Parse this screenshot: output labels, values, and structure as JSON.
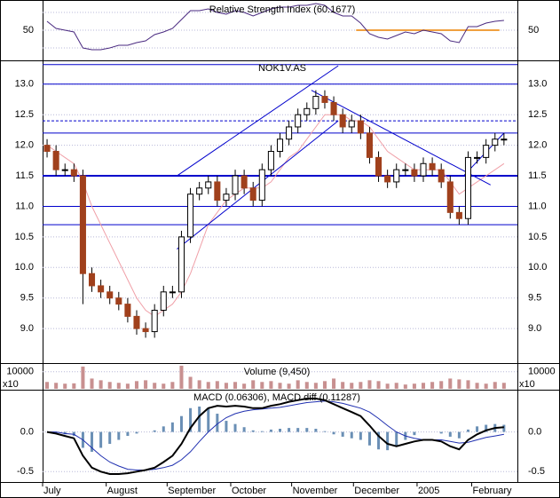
{
  "chart_data": [
    {
      "type": "line",
      "title": "Relative Strength Index (60.1677)",
      "color": "#4a2a80",
      "xlim": [
        0,
        53
      ],
      "values": [
        60,
        52,
        50,
        48,
        30,
        28,
        28,
        30,
        33,
        33,
        36,
        38,
        45,
        48,
        52,
        62,
        72,
        72,
        74,
        70,
        68,
        72,
        70,
        66,
        70,
        74,
        76,
        76,
        78,
        78,
        80,
        78,
        70,
        66,
        66,
        58,
        46,
        42,
        40,
        44,
        48,
        46,
        50,
        48,
        46,
        38,
        36,
        54,
        54,
        58,
        60,
        61
      ],
      "ylim": [
        18,
        82
      ],
      "yticks": [
        50
      ],
      "ref_lines": [
        30,
        70
      ],
      "highlight": {
        "value": 50,
        "from": 35,
        "to": 51,
        "color": "#f0a040"
      }
    },
    {
      "type": "candlestick",
      "title": "NOK1V.AS",
      "up_color": "#ffffff",
      "down_color": "#a0401c",
      "xlim": [
        0,
        53
      ],
      "open": [
        12.0,
        11.9,
        11.6,
        11.6,
        11.5,
        9.9,
        9.7,
        9.6,
        9.5,
        9.4,
        9.2,
        9.0,
        8.95,
        9.3,
        9.6,
        9.6,
        10.5,
        11.2,
        11.3,
        11.4,
        11.1,
        11.2,
        11.5,
        11.3,
        11.1,
        11.6,
        11.9,
        12.1,
        12.3,
        12.5,
        12.6,
        12.8,
        12.7,
        12.5,
        12.3,
        12.4,
        12.2,
        11.8,
        11.5,
        11.4,
        11.6,
        11.6,
        11.5,
        11.7,
        11.6,
        11.4,
        10.9,
        10.8,
        11.8,
        11.8,
        12.0,
        12.1
      ],
      "high": [
        12.1,
        12.0,
        11.7,
        11.7,
        11.6,
        10.0,
        9.8,
        9.7,
        9.6,
        9.5,
        9.3,
        9.1,
        9.4,
        9.7,
        9.7,
        10.6,
        11.3,
        11.4,
        11.5,
        11.5,
        11.3,
        11.6,
        11.6,
        11.4,
        11.7,
        12.0,
        12.2,
        12.4,
        12.6,
        12.7,
        12.9,
        12.9,
        12.8,
        12.6,
        12.5,
        12.5,
        12.3,
        11.9,
        11.6,
        11.7,
        11.7,
        11.7,
        11.8,
        11.8,
        11.7,
        11.5,
        11.0,
        11.9,
        11.9,
        12.1,
        12.2,
        12.2
      ],
      "low": [
        11.8,
        11.5,
        11.5,
        11.4,
        9.4,
        9.6,
        9.5,
        9.4,
        9.3,
        9.1,
        8.9,
        8.85,
        8.85,
        9.2,
        9.5,
        9.5,
        10.4,
        11.1,
        11.2,
        11.0,
        11.0,
        11.1,
        11.2,
        11.0,
        11.0,
        11.5,
        11.8,
        12.0,
        12.2,
        12.4,
        12.5,
        12.6,
        12.4,
        12.2,
        12.2,
        12.1,
        11.7,
        11.4,
        11.3,
        11.3,
        11.5,
        11.4,
        11.4,
        11.5,
        11.3,
        10.8,
        10.7,
        10.7,
        11.7,
        11.7,
        11.9,
        12.0
      ],
      "close": [
        11.9,
        11.6,
        11.6,
        11.5,
        9.9,
        9.7,
        9.6,
        9.5,
        9.4,
        9.2,
        9.0,
        8.95,
        9.3,
        9.6,
        9.6,
        10.5,
        11.2,
        11.3,
        11.4,
        11.1,
        11.2,
        11.5,
        11.3,
        11.1,
        11.6,
        11.9,
        12.1,
        12.3,
        12.5,
        12.6,
        12.8,
        12.7,
        12.5,
        12.3,
        12.4,
        12.2,
        11.8,
        11.5,
        11.4,
        11.6,
        11.6,
        11.5,
        11.7,
        11.6,
        11.4,
        10.9,
        10.8,
        11.8,
        11.8,
        12.0,
        12.1,
        12.1
      ],
      "ma": {
        "color": "#f0a0a8",
        "values": [
          12.0,
          11.9,
          11.8,
          11.7,
          11.4,
          11.0,
          10.7,
          10.4,
          10.1,
          9.8,
          9.5,
          9.3,
          9.2,
          9.3,
          9.4,
          9.6,
          9.9,
          10.3,
          10.7,
          10.9,
          11.1,
          11.2,
          11.3,
          11.3,
          11.3,
          11.4,
          11.6,
          11.8,
          11.9,
          12.1,
          12.3,
          12.5,
          12.5,
          12.5,
          12.4,
          12.4,
          12.3,
          12.1,
          11.9,
          11.8,
          11.7,
          11.6,
          11.6,
          11.6,
          11.6,
          11.4,
          11.2,
          11.3,
          11.4,
          11.5,
          11.6,
          11.7
        ]
      },
      "ylim": [
        8.45,
        13.36
      ],
      "yticks": [
        {
          "value": 9.0,
          "label": "9.0"
        },
        {
          "value": 9.5,
          "label": "9.5"
        },
        {
          "value": 10.0,
          "label": "10.0"
        },
        {
          "value": 10.5,
          "label": "10.5"
        },
        {
          "value": 11.0,
          "label": "11.0"
        },
        {
          "value": 11.5,
          "label": "11.5"
        },
        {
          "value": 12.0,
          "label": "12.0"
        },
        {
          "value": 12.5,
          "label": "12.5"
        },
        {
          "value": 13.0,
          "label": "13.0"
        }
      ],
      "hlines": [
        13.32,
        13.0,
        12.2,
        11.0,
        10.7
      ],
      "thick_hlines": [
        11.5
      ],
      "dashed_hlines": [
        12.4
      ],
      "trendlines": [
        [
          15,
          10.3,
          33,
          12.4
        ],
        [
          15,
          11.5,
          33,
          13.3
        ],
        [
          30,
          12.9,
          50,
          11.35
        ],
        [
          47,
          11.5,
          51.5,
          12.2
        ]
      ],
      "line_color": "#0000cc"
    },
    {
      "type": "bar",
      "title": "Volume (9,450)",
      "color": "#c89090",
      "unit_label": "x10",
      "xlim": [
        0,
        53
      ],
      "values": [
        4000,
        3500,
        3000,
        3200,
        13000,
        6000,
        5000,
        4000,
        3500,
        3000,
        4500,
        5000,
        3500,
        3000,
        4000,
        13500,
        7000,
        5000,
        4000,
        4500,
        3500,
        4000,
        3000,
        5000,
        4000,
        4500,
        3500,
        3000,
        5000,
        4000,
        3500,
        4500,
        6000,
        4000,
        3500,
        4000,
        5000,
        4500,
        3000,
        3500,
        2500,
        3000,
        3500,
        4000,
        4500,
        6000,
        5500,
        5000,
        3500,
        3000,
        4000,
        3500
      ],
      "ylim": [
        0,
        14000
      ],
      "yticks": [
        10000
      ]
    },
    {
      "type": "macd",
      "title": "MACD (0.06306), MACD diff (0.11287)",
      "xlim": [
        0,
        53
      ],
      "macd": {
        "color": "#000000",
        "values": [
          0.0,
          -0.02,
          -0.05,
          -0.08,
          -0.3,
          -0.45,
          -0.5,
          -0.53,
          -0.53,
          -0.52,
          -0.5,
          -0.48,
          -0.45,
          -0.38,
          -0.3,
          -0.15,
          0.05,
          0.2,
          0.3,
          0.33,
          0.32,
          0.33,
          0.32,
          0.3,
          0.3,
          0.33,
          0.35,
          0.38,
          0.4,
          0.42,
          0.42,
          0.4,
          0.35,
          0.3,
          0.25,
          0.2,
          0.08,
          -0.05,
          -0.15,
          -0.18,
          -0.15,
          -0.12,
          -0.1,
          -0.1,
          -0.12,
          -0.18,
          -0.22,
          -0.1,
          -0.03,
          0.02,
          0.05,
          0.06
        ]
      },
      "signal": {
        "color": "#2030b0",
        "values": [
          0.0,
          0.0,
          -0.02,
          -0.03,
          -0.1,
          -0.2,
          -0.3,
          -0.38,
          -0.43,
          -0.47,
          -0.48,
          -0.48,
          -0.47,
          -0.45,
          -0.42,
          -0.35,
          -0.25,
          -0.12,
          0.0,
          0.1,
          0.18,
          0.23,
          0.26,
          0.28,
          0.29,
          0.3,
          0.31,
          0.33,
          0.35,
          0.37,
          0.38,
          0.39,
          0.38,
          0.36,
          0.33,
          0.3,
          0.25,
          0.17,
          0.08,
          0.0,
          -0.05,
          -0.08,
          -0.1,
          -0.1,
          -0.1,
          -0.12,
          -0.14,
          -0.13,
          -0.1,
          -0.07,
          -0.05,
          -0.03
        ]
      },
      "hist": {
        "color": "#6a8fb5",
        "values": [
          0,
          -0.02,
          -0.03,
          -0.05,
          -0.2,
          -0.25,
          -0.2,
          -0.15,
          -0.1,
          -0.05,
          -0.02,
          0,
          0.02,
          0.07,
          0.12,
          0.2,
          0.3,
          0.32,
          0.3,
          0.23,
          0.14,
          0.1,
          0.06,
          0.02,
          0.01,
          0.03,
          0.04,
          0.05,
          0.05,
          0.05,
          0.04,
          0.01,
          -0.03,
          -0.06,
          -0.08,
          -0.1,
          -0.17,
          -0.22,
          -0.23,
          -0.18,
          -0.1,
          -0.04,
          0,
          0,
          -0.02,
          -0.06,
          -0.08,
          0.03,
          0.07,
          0.09,
          0.1,
          0.09
        ]
      },
      "ylim": [
        -0.62,
        0.51
      ],
      "yticks": [
        {
          "value": 0,
          "label": "0.0"
        },
        {
          "value": -0.5,
          "label": "-0.5"
        }
      ],
      "xticks": [
        {
          "value": 0,
          "label": "July"
        },
        {
          "value": 7.1,
          "label": "August"
        },
        {
          "value": 13.9,
          "label": "September"
        },
        {
          "value": 21,
          "label": "October"
        },
        {
          "value": 27.8,
          "label": "November"
        },
        {
          "value": 34.7,
          "label": "December"
        },
        {
          "value": 41.8,
          "label": "2005"
        },
        {
          "value": 47.9,
          "label": "February"
        }
      ]
    }
  ]
}
